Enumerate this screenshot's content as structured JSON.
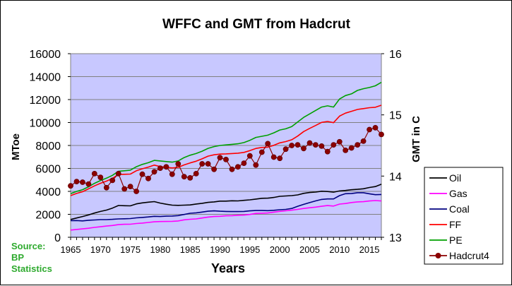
{
  "chart_data": {
    "type": "line",
    "title": "WFFC and GMT from Hadcrut",
    "xlabel": "Years",
    "ylabel": "MToe",
    "y2label": "GMT in C",
    "xlim": [
      1965,
      2017
    ],
    "ylim": [
      0,
      16000
    ],
    "y2lim": [
      13,
      16
    ],
    "xticks": [
      "1965",
      "1970",
      "1975",
      "1980",
      "1985",
      "1990",
      "1995",
      "2000",
      "2005",
      "2010",
      "2015"
    ],
    "yticks": [
      "0",
      "2000",
      "4000",
      "6000",
      "8000",
      "10000",
      "12000",
      "14000",
      "16000"
    ],
    "y2ticks": [
      "13",
      "14",
      "15",
      "16"
    ],
    "grid": true,
    "legend_position": "right-bottom",
    "source_lines": [
      "Source:",
      "BP",
      "Statistics"
    ],
    "x": [
      1965,
      1966,
      1967,
      1968,
      1969,
      1970,
      1971,
      1972,
      1973,
      1974,
      1975,
      1976,
      1977,
      1978,
      1979,
      1980,
      1981,
      1982,
      1983,
      1984,
      1985,
      1986,
      1987,
      1988,
      1989,
      1990,
      1991,
      1992,
      1993,
      1994,
      1995,
      1996,
      1997,
      1998,
      1999,
      2000,
      2001,
      2002,
      2003,
      2004,
      2005,
      2006,
      2007,
      2008,
      2009,
      2010,
      2011,
      2012,
      2013,
      2014,
      2015,
      2016,
      2017
    ],
    "series": [
      {
        "name": "Oil",
        "color": "#000000",
        "axis": "left",
        "marker": "none",
        "values": [
          1550,
          1680,
          1810,
          1950,
          2110,
          2250,
          2370,
          2540,
          2770,
          2750,
          2740,
          2910,
          3000,
          3060,
          3110,
          2980,
          2880,
          2800,
          2780,
          2800,
          2820,
          2900,
          2960,
          3040,
          3080,
          3150,
          3150,
          3180,
          3170,
          3220,
          3260,
          3330,
          3400,
          3410,
          3470,
          3570,
          3600,
          3630,
          3690,
          3830,
          3900,
          3940,
          4010,
          3990,
          3930,
          4040,
          4080,
          4140,
          4180,
          4230,
          4340,
          4420,
          4620
        ]
      },
      {
        "name": "Gas",
        "color": "#ff00ff",
        "axis": "left",
        "marker": "none",
        "values": [
          630,
          680,
          730,
          790,
          860,
          920,
          980,
          1030,
          1100,
          1130,
          1140,
          1200,
          1240,
          1290,
          1350,
          1370,
          1380,
          1390,
          1420,
          1520,
          1570,
          1600,
          1680,
          1760,
          1810,
          1830,
          1870,
          1880,
          1920,
          1930,
          1990,
          2080,
          2100,
          2120,
          2190,
          2260,
          2310,
          2360,
          2430,
          2510,
          2570,
          2630,
          2700,
          2760,
          2720,
          2890,
          2940,
          3030,
          3080,
          3100,
          3160,
          3200,
          3160
        ]
      },
      {
        "name": "Coal",
        "color": "#000080",
        "axis": "left",
        "marker": "none",
        "values": [
          1450,
          1460,
          1430,
          1480,
          1510,
          1540,
          1540,
          1560,
          1600,
          1610,
          1630,
          1690,
          1730,
          1770,
          1830,
          1810,
          1840,
          1850,
          1890,
          1990,
          2090,
          2130,
          2200,
          2270,
          2300,
          2270,
          2250,
          2240,
          2240,
          2250,
          2300,
          2330,
          2330,
          2320,
          2350,
          2400,
          2430,
          2510,
          2700,
          2870,
          3020,
          3170,
          3300,
          3340,
          3340,
          3630,
          3800,
          3810,
          3880,
          3880,
          3790,
          3710,
          3730
        ]
      },
      {
        "name": "FF",
        "color": "#ff0000",
        "axis": "left",
        "marker": "none",
        "values": [
          3630,
          3820,
          3970,
          4220,
          4480,
          4710,
          4890,
          5130,
          5470,
          5490,
          5510,
          5800,
          5970,
          6120,
          6290,
          6160,
          6100,
          6040,
          6090,
          6310,
          6480,
          6630,
          6840,
          7070,
          7190,
          7250,
          7270,
          7300,
          7330,
          7400,
          7550,
          7740,
          7830,
          7850,
          8010,
          8230,
          8340,
          8500,
          8820,
          9210,
          9490,
          9740,
          10010,
          10090,
          9990,
          10560,
          10820,
          10980,
          11140,
          11210,
          11290,
          11330,
          11510
        ]
      },
      {
        "name": "PE",
        "color": "#00a000",
        "axis": "left",
        "marker": "none",
        "values": [
          3800,
          4000,
          4150,
          4400,
          4700,
          4950,
          5150,
          5400,
          5750,
          5800,
          5850,
          6150,
          6350,
          6500,
          6700,
          6650,
          6600,
          6550,
          6650,
          6950,
          7150,
          7300,
          7500,
          7750,
          7900,
          8000,
          8050,
          8100,
          8150,
          8250,
          8450,
          8700,
          8800,
          8900,
          9100,
          9350,
          9450,
          9650,
          10050,
          10450,
          10750,
          11050,
          11350,
          11450,
          11350,
          12050,
          12350,
          12500,
          12800,
          12950,
          13050,
          13200,
          13500
        ]
      },
      {
        "name": "Hadcrut4",
        "color": "#8b0000",
        "axis": "right",
        "marker": "circle",
        "values": [
          13.84,
          13.91,
          13.9,
          13.87,
          14.04,
          13.98,
          13.81,
          13.93,
          14.04,
          13.79,
          13.83,
          13.75,
          14.03,
          13.96,
          14.07,
          14.13,
          14.15,
          14.03,
          14.2,
          13.99,
          13.97,
          14.04,
          14.2,
          14.2,
          14.11,
          14.3,
          14.27,
          14.11,
          14.15,
          14.21,
          14.33,
          14.18,
          14.39,
          14.53,
          14.31,
          14.29,
          14.44,
          14.5,
          14.51,
          14.45,
          14.54,
          14.51,
          14.49,
          14.4,
          14.51,
          14.56,
          14.42,
          14.46,
          14.51,
          14.57,
          14.76,
          14.79,
          14.68
        ]
      }
    ]
  }
}
